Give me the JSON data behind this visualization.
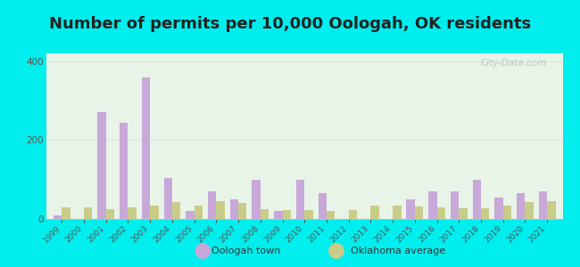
{
  "title": "Number of permits per 10,000 Oologah, OK residents",
  "years": [
    1999,
    2000,
    2001,
    2002,
    2003,
    2004,
    2005,
    2006,
    2007,
    2008,
    2009,
    2010,
    2011,
    2012,
    2013,
    2014,
    2015,
    2016,
    2017,
    2018,
    2019,
    2020,
    2021
  ],
  "oologah": [
    10,
    0,
    270,
    245,
    360,
    105,
    20,
    70,
    50,
    100,
    20,
    100,
    65,
    0,
    0,
    0,
    50,
    70,
    70,
    100,
    55,
    65,
    70
  ],
  "oklahoma": [
    30,
    30,
    25,
    30,
    35,
    42,
    35,
    45,
    40,
    25,
    22,
    22,
    20,
    22,
    35,
    35,
    32,
    30,
    28,
    28,
    35,
    42,
    45
  ],
  "oologah_color": "#c8a8d8",
  "oklahoma_color": "#c8cc88",
  "plot_bg_top": "#e8f4e8",
  "plot_bg_bottom": "#e0f0f8",
  "outer_bg": "#00eeee",
  "ylim": [
    0,
    420
  ],
  "yticks": [
    0,
    200,
    400
  ],
  "title_fontsize": 13,
  "title_color": "#222222",
  "tick_color": "#555555",
  "legend_label_oologah": "Oologah town",
  "legend_label_oklahoma": "Oklahoma average",
  "watermark": "City-Data.com",
  "grid_color": "#dddddd"
}
